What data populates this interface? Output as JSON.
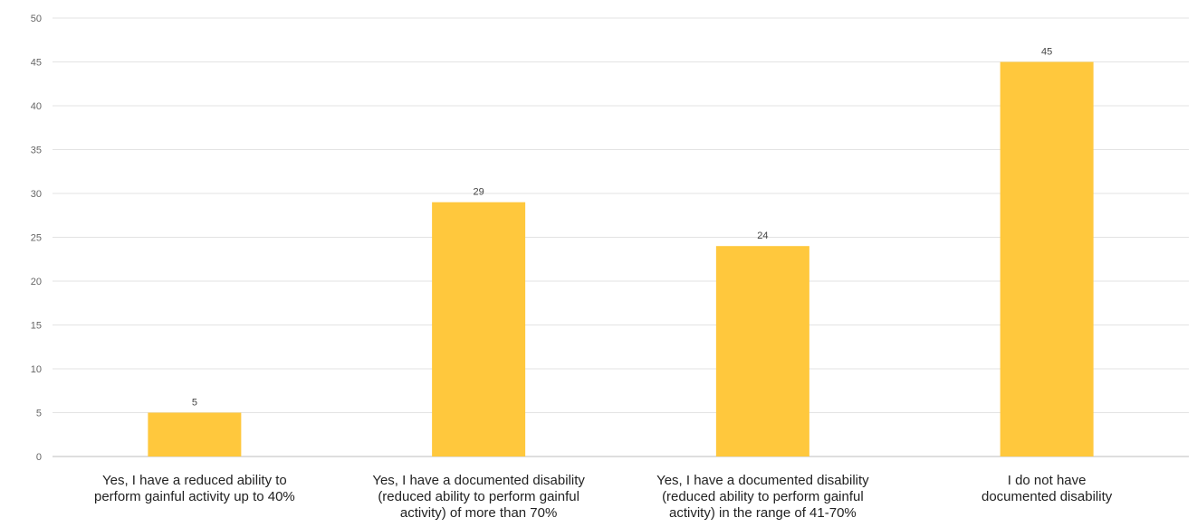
{
  "chart_data": {
    "type": "bar",
    "categories": [
      [
        "Yes, I have a reduced ability to",
        "perform gainful activity up to 40%"
      ],
      [
        "Yes, I have a documented disability",
        "(reduced ability to perform gainful",
        "activity) of more than 70%"
      ],
      [
        "Yes, I have a documented disability",
        "(reduced ability to perform gainful",
        "activity) in the range of  41-70%"
      ],
      [
        "I do not have",
        "documented disability"
      ]
    ],
    "values": [
      5,
      29,
      24,
      45
    ],
    "ylim": [
      0,
      50
    ],
    "yticks": [
      0,
      5,
      10,
      15,
      20,
      25,
      30,
      35,
      40,
      45,
      50
    ],
    "grid": true,
    "legend": "none",
    "bar_color": "#FFC83D"
  }
}
